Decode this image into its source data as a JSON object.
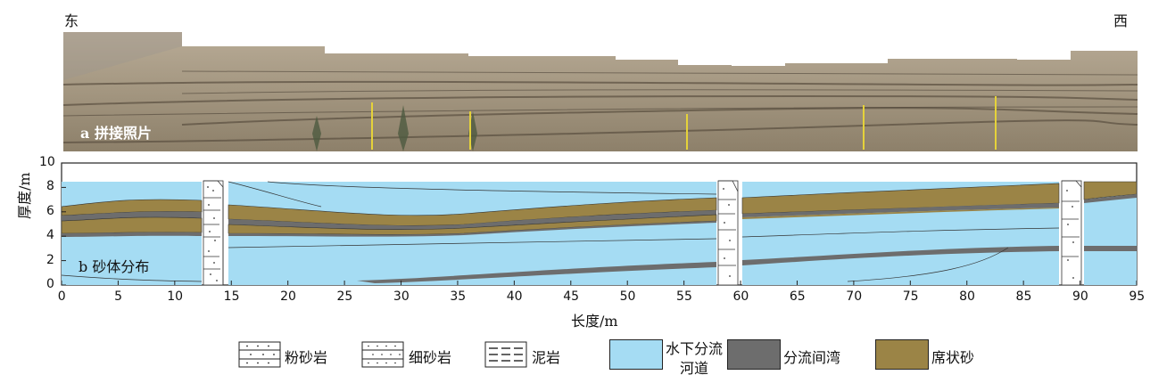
{
  "header": {
    "left_label": "东",
    "right_label": "西"
  },
  "photo": {
    "caption": "a  拼接照片"
  },
  "section": {
    "caption": "b  砂体分布",
    "y_axis_label": "厚度/m",
    "x_axis_label": "长度/m",
    "y_ticks": [
      "0",
      "2",
      "4",
      "6",
      "8",
      "10"
    ],
    "x_ticks": [
      "0",
      "5",
      "10",
      "15",
      "20",
      "25",
      "30",
      "35",
      "40",
      "45",
      "50",
      "55",
      "60",
      "65",
      "70",
      "75",
      "80",
      "85",
      "90",
      "95"
    ]
  },
  "legend": {
    "items": [
      {
        "key": "silt",
        "label": "粉砂岩"
      },
      {
        "key": "fine",
        "label": "细砂岩"
      },
      {
        "key": "mud",
        "label": "泥岩"
      },
      {
        "key": "channel",
        "label_line1": "水下分流",
        "label_line2": "河道",
        "color": "#a5dcf3"
      },
      {
        "key": "bay",
        "label": "分流间湾",
        "color": "#6d6d6d"
      },
      {
        "key": "sheet",
        "label": "席状砂",
        "color": "#9b8446"
      }
    ]
  },
  "colors": {
    "channel": "#a5dcf3",
    "bay": "#6d6d6d",
    "sheet": "#9b8446"
  }
}
